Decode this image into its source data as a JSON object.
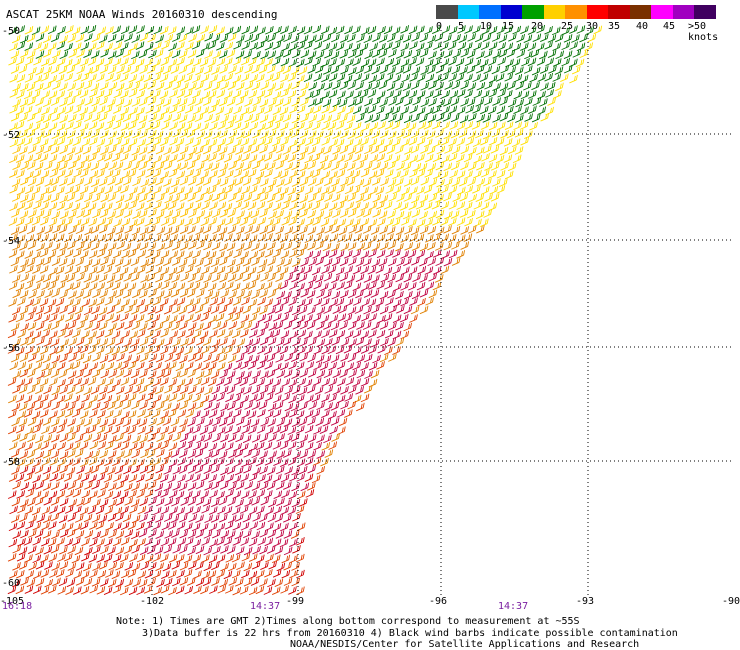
{
  "title": "ASCAT 25KM NOAA Winds 20160310 descending",
  "colorbar": {
    "ticks": [
      "0",
      "5",
      "10",
      "15",
      "20",
      "25",
      "30",
      "35",
      "40",
      "45",
      ">50 knots"
    ],
    "colors": [
      "#4a4a4a",
      "#00c8ff",
      "#0070ff",
      "#0000d0",
      "#00a000",
      "#ffd000",
      "#ff9000",
      "#ff0000",
      "#c00000",
      "#7a3000",
      "#ff00ff",
      "#a000c0",
      "#400060"
    ]
  },
  "map": {
    "lon_labels": [
      "-105",
      "-102",
      "-99",
      "-96",
      "-93",
      "-90"
    ],
    "lat_labels": [
      "-50",
      "-52",
      "-54",
      "-56",
      "-58",
      "-60"
    ],
    "time_labels": [
      "16:18",
      "14:37",
      "14:37"
    ],
    "barb_colors": {
      "green": "#007000",
      "yellow": "#ffe000",
      "gold": "#ffc000",
      "orange": "#e08000",
      "redorange": "#e04000",
      "red": "#d00000",
      "crimson": "#c00040",
      "black": "#000000"
    }
  },
  "notes": {
    "line1": "Note: 1) Times are GMT 2)Times along bottom correspond to measurement at ~55S",
    "line2": "3)Data buffer is 22 hrs from 20160310 4) Black wind barbs indicate possible contamination",
    "line3": "NOAA/NESDIS/Center for Satellite Applications and Research"
  }
}
